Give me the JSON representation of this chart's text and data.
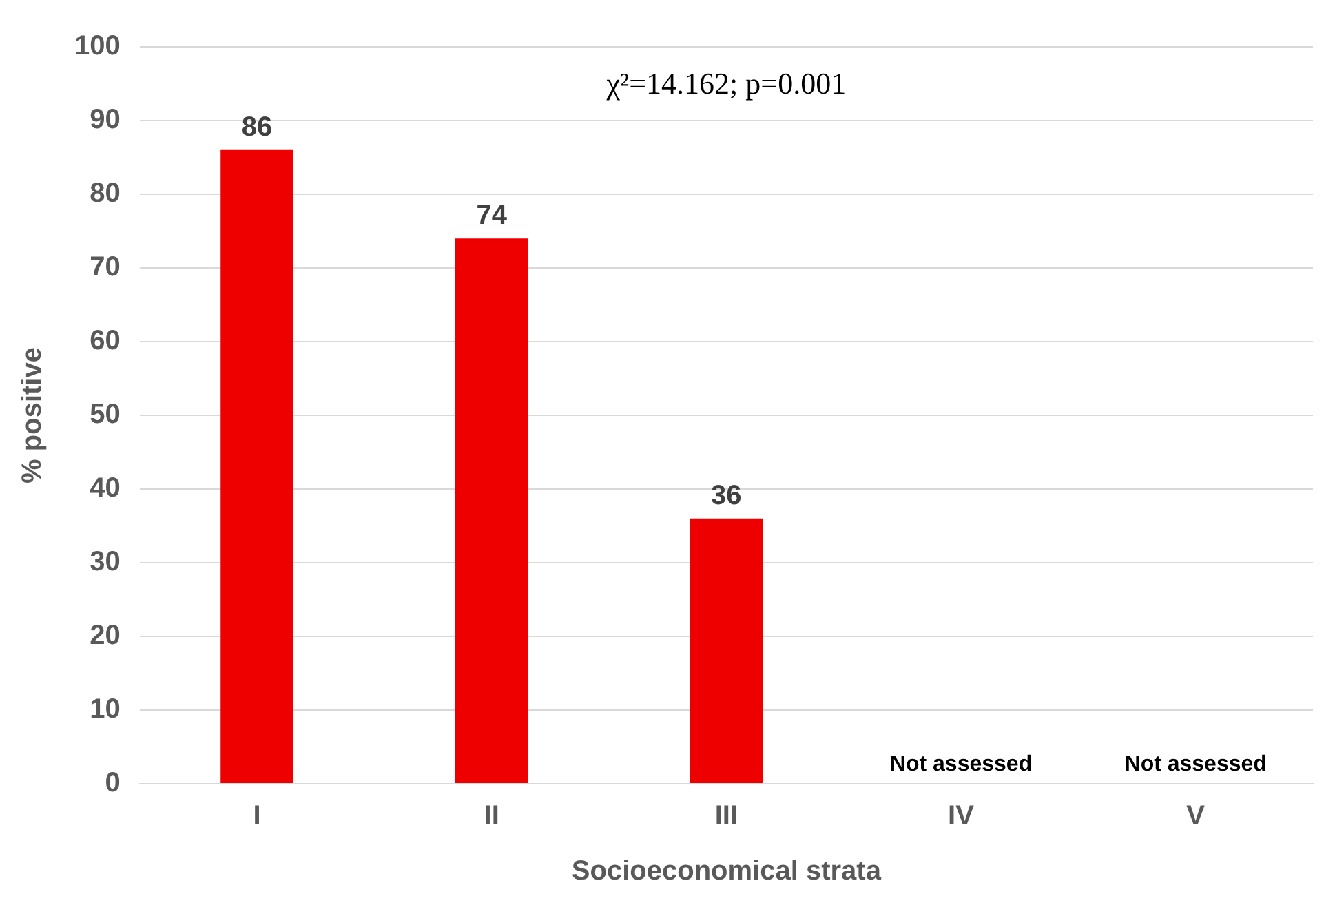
{
  "chart_data": {
    "type": "bar",
    "xlabel": "Socioeconomical strata",
    "ylabel": "% positive",
    "categories": [
      "I",
      "II",
      "III",
      "IV",
      "V"
    ],
    "values": [
      86,
      74,
      36,
      null,
      null
    ],
    "value_labels": [
      "86",
      "74",
      "36",
      "Not assessed",
      "Not assessed"
    ],
    "color": "#ee0000",
    "ylim": [
      0,
      100
    ],
    "yticks": [
      0,
      10,
      20,
      30,
      40,
      50,
      60,
      70,
      80,
      90,
      100
    ],
    "grid": "y",
    "legend": false,
    "annotations": [
      "χ²=14.162; p=0.001"
    ]
  }
}
